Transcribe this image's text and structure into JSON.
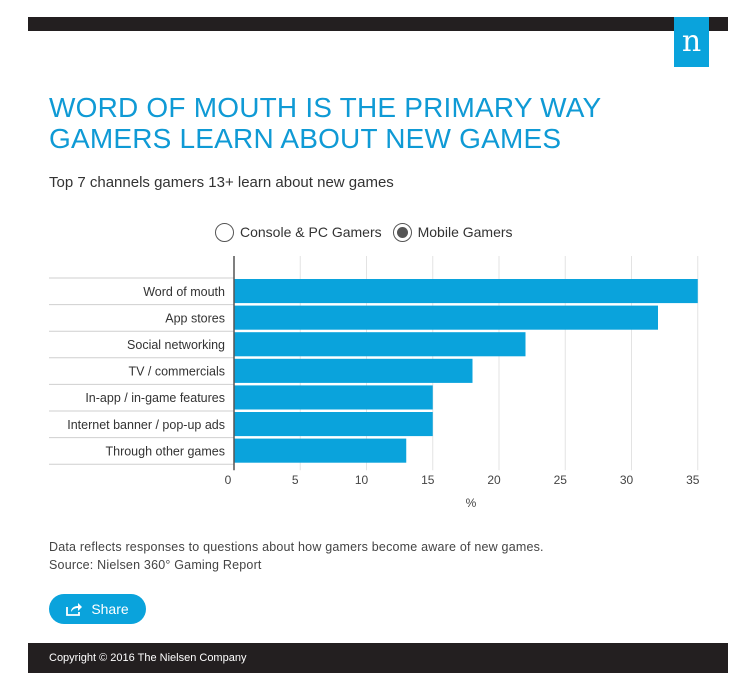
{
  "brand": {
    "logo_letter": "n",
    "accent": "#0aa3dc",
    "title_color": "#0f9ad5"
  },
  "title": "WORD OF MOUTH IS THE PRIMARY WAY GAMERS LEARN ABOUT NEW GAMES",
  "subtitle": "Top 7 channels gamers 13+ learn about new games",
  "legend": {
    "options": [
      {
        "label": "Console & PC Gamers",
        "selected": false
      },
      {
        "label": "Mobile Gamers",
        "selected": true
      }
    ]
  },
  "chart_data": {
    "type": "bar",
    "orientation": "horizontal",
    "categories": [
      "Word of mouth",
      "App stores",
      "Social networking",
      "TV / commercials",
      "In-app / in-game features",
      "Internet banner / pop-up ads",
      "Through other games"
    ],
    "values": [
      35,
      32,
      22,
      18,
      15,
      15,
      13
    ],
    "xlabel": "%",
    "xlim": [
      0,
      35
    ],
    "xticks": [
      0,
      5,
      10,
      15,
      20,
      25,
      30,
      35
    ],
    "bar_color": "#0aa3dc",
    "grid": true
  },
  "footnote": {
    "line1": "Data reflects responses to questions about how gamers become aware of new games.",
    "line2": "Source: Nielsen 360° Gaming Report"
  },
  "share": {
    "label": "Share",
    "icon": "share-icon"
  },
  "footer": {
    "copyright": "Copyright © 2016 The Nielsen Company"
  }
}
